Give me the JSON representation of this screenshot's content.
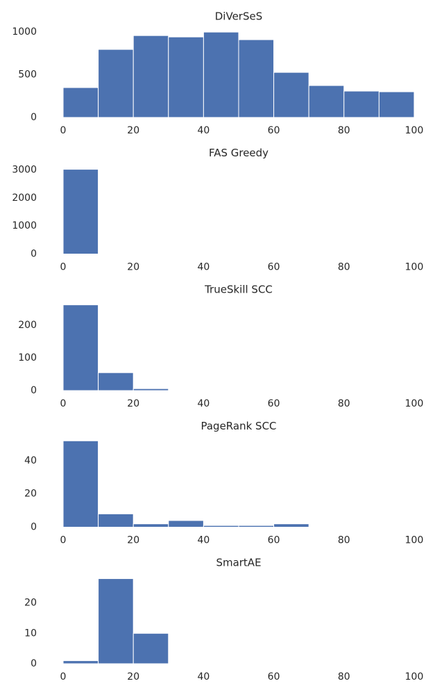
{
  "chart_data": [
    {
      "type": "histogram",
      "title": "DiVerSeS",
      "bins": [
        0,
        10,
        20,
        30,
        40,
        50,
        60,
        70,
        80,
        90,
        100
      ],
      "values": [
        350,
        797,
        959,
        943,
        1000,
        911,
        528,
        374,
        309,
        301
      ],
      "color": "#4c72b0",
      "xlim": [
        0,
        100
      ],
      "xticks": [
        0,
        20,
        40,
        60,
        80,
        100
      ],
      "ylim": [
        0,
        1050
      ],
      "yticks": [
        0,
        500,
        1000
      ]
    },
    {
      "type": "histogram",
      "title": "FAS Greedy",
      "bins": [
        0,
        10,
        20,
        30,
        40,
        50,
        60,
        70,
        80,
        90,
        100
      ],
      "values": [
        3024,
        0,
        0,
        0,
        0,
        0,
        0,
        0,
        0,
        0
      ],
      "color": "#4c72b0",
      "xlim": [
        0,
        100
      ],
      "xticks": [
        0,
        20,
        40,
        60,
        80,
        100
      ],
      "ylim": [
        0,
        3200
      ],
      "yticks": [
        0,
        1000,
        2000,
        3000
      ]
    },
    {
      "type": "histogram",
      "title": "TrueSkill SCC",
      "bins": [
        0,
        10,
        20,
        30,
        40,
        50,
        60,
        70,
        80,
        90,
        100
      ],
      "values": [
        263,
        55,
        6,
        0,
        0,
        0,
        0,
        0,
        0,
        0
      ],
      "color": "#4c72b0",
      "xlim": [
        0,
        100
      ],
      "xticks": [
        0,
        20,
        40,
        60,
        80,
        100
      ],
      "ylim": [
        0,
        275
      ],
      "yticks": [
        0,
        100,
        200
      ]
    },
    {
      "type": "histogram",
      "title": "PageRank SCC",
      "bins": [
        0,
        10,
        20,
        30,
        40,
        50,
        60,
        70,
        80,
        90,
        100
      ],
      "values": [
        52,
        8,
        2,
        4,
        1,
        1,
        2,
        0,
        0,
        0
      ],
      "color": "#4c72b0",
      "xlim": [
        0,
        100
      ],
      "xticks": [
        0,
        20,
        40,
        60,
        80,
        100
      ],
      "ylim": [
        0,
        54
      ],
      "yticks": [
        0,
        20,
        40
      ]
    },
    {
      "type": "histogram",
      "title": "SmartAE",
      "bins": [
        0,
        10,
        20,
        30,
        40,
        50,
        60,
        70,
        80,
        90,
        100
      ],
      "values": [
        1,
        28,
        10,
        0,
        0,
        0,
        0,
        0,
        0,
        0
      ],
      "color": "#4c72b0",
      "xlim": [
        0,
        100
      ],
      "xticks": [
        0,
        20,
        40,
        60,
        80,
        100
      ],
      "ylim": [
        0,
        29.5
      ],
      "yticks": [
        0,
        10,
        20
      ]
    }
  ]
}
